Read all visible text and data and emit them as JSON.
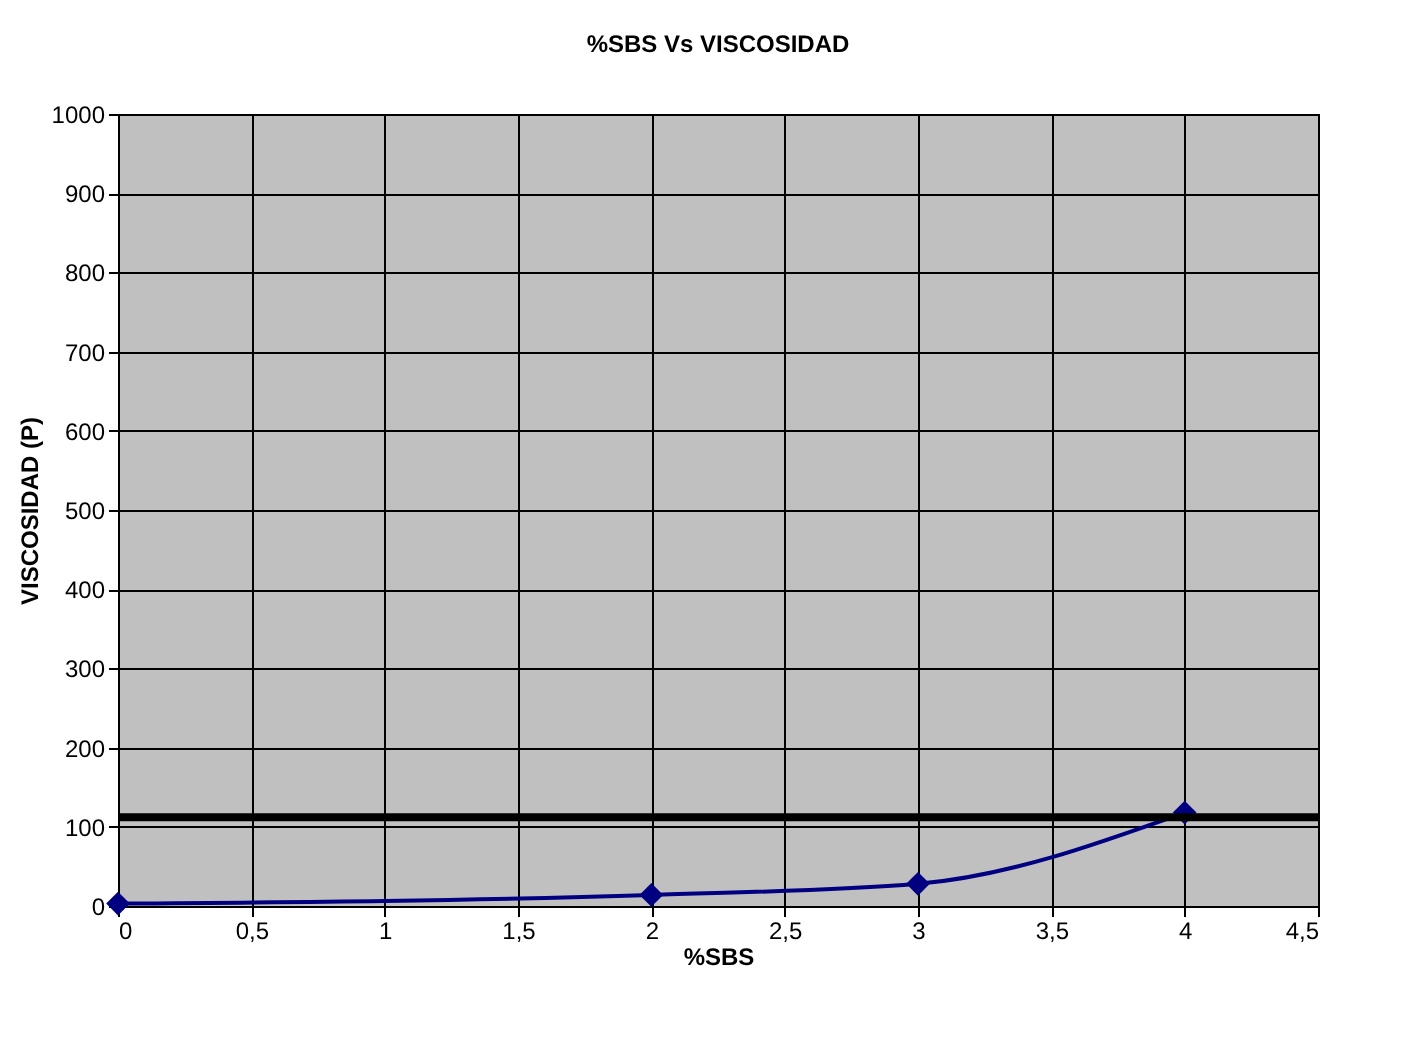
{
  "chart_data": {
    "type": "line",
    "title": "%SBS Vs VISCOSIDAD",
    "xlabel": "%SBS",
    "ylabel": "VISCOSIDAD (P)",
    "x": [
      0,
      2,
      3,
      4
    ],
    "series": [
      {
        "color": "#000080",
        "values": [
          3,
          14,
          28,
          118
        ]
      }
    ],
    "xlim": [
      0,
      4.5
    ],
    "xticks": [
      0,
      {
        "value": 0.5,
        "label": "0,5"
      },
      1,
      {
        "value": 1.5,
        "label": "1,5"
      },
      2,
      {
        "value": 2.5,
        "label": "2,5"
      },
      3,
      {
        "value": 3.5,
        "label": "3,5"
      },
      4,
      {
        "value": 4.5,
        "label": "4,5"
      }
    ],
    "ylim": [
      0,
      1000
    ],
    "yticks": [
      0,
      100,
      200,
      300,
      400,
      500,
      600,
      700,
      800,
      900,
      1000
    ],
    "ref_lines": [
      {
        "axis": "y",
        "value": 112,
        "color": "#000000"
      }
    ],
    "grid": true,
    "marker": "diamond",
    "line_style": "solid",
    "legend": false
  }
}
